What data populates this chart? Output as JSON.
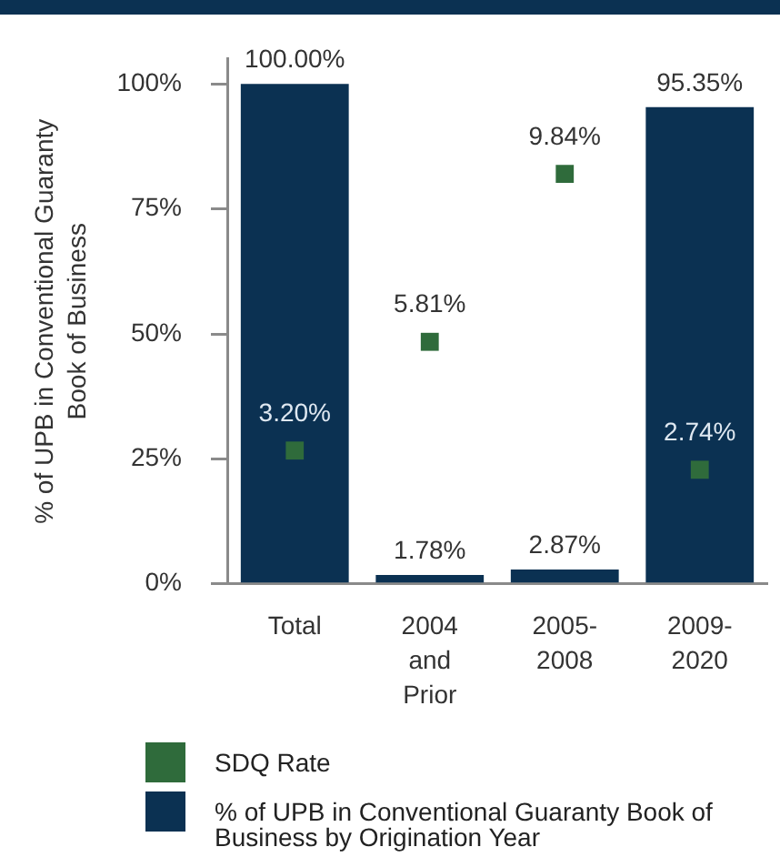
{
  "chart_data": {
    "type": "bar",
    "ylabel": "% of UPB in Conventional Guaranty Book of Business",
    "categories": [
      "Total",
      "2004 and Prior",
      "2005-2008",
      "2009-2020"
    ],
    "series": [
      {
        "name": "SDQ Rate",
        "type": "scatter",
        "axis": "y2",
        "color": "#2f6b3b",
        "marker": "square",
        "x": [
          "Total",
          "2004 and Prior",
          "2005-2008",
          "2009-2020"
        ],
        "values": [
          3.2,
          5.81,
          9.84,
          2.74
        ],
        "value_labels": [
          "3.20%",
          "5.81%",
          "9.84%",
          "2.74%"
        ]
      },
      {
        "name": "% of UPB in Conventional Guaranty Book of Business by Origination Year",
        "color": "#0b3152",
        "values": [
          100,
          1.78,
          2.87,
          95.35
        ],
        "value_labels": [
          "100.00%",
          "1.78%",
          "2.87%",
          "95.35%"
        ]
      }
    ],
    "ylim": [
      0,
      105
    ],
    "yticks": [
      {
        "value": 0,
        "label": "0%"
      },
      {
        "value": 25,
        "label": "25%"
      },
      {
        "value": 50,
        "label": "50%"
      },
      {
        "value": 75,
        "label": "75%"
      },
      {
        "value": 100,
        "label": "100%"
      }
    ],
    "y2lim": [
      0,
      12.6
    ],
    "legend": "bottom"
  }
}
